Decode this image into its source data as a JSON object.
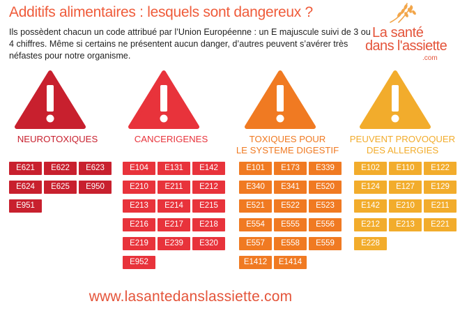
{
  "title": "Additifs alimentaires : lesquels sont dangereux ?",
  "intro": "Ils possèdent chacun un code attribué par l’Union Européenne : un E majuscule suivi de 3 ou 4 chiffres. Même si certains ne présentent aucun danger, d’autres peuvent s’avérer très néfastes pour notre organisme.",
  "logo": {
    "line1": "La santé",
    "line2": "dans l'assiette",
    "sub": ".com",
    "icon": "wheat-icon"
  },
  "categories": [
    {
      "label": "NEUROTOXIQUES",
      "color": "#c8202e",
      "codes": [
        "E621",
        "E622",
        "E623",
        "E624",
        "E625",
        "E950",
        "E951"
      ]
    },
    {
      "label": "CANCERIGENES",
      "color": "#e8333b",
      "codes": [
        "E104",
        "E131",
        "E142",
        "E210",
        "E211",
        "E212",
        "E213",
        "E214",
        "E215",
        "E216",
        "E217",
        "E218",
        "E219",
        "E239",
        "E320",
        "E952"
      ]
    },
    {
      "label": "TOXIQUES POUR\nLE SYSTEME DIGESTIF",
      "color": "#f07a22",
      "codes": [
        "E101",
        "E173",
        "E339",
        "E340",
        "E341",
        "E520",
        "E521",
        "E522",
        "E523",
        "E554",
        "E555",
        "E556",
        "E557",
        "E558",
        "E559",
        "E1412",
        "E1414"
      ]
    },
    {
      "label": "PEUVENT PROVOQUER\nDES ALLERGIES",
      "color": "#f2ac2c",
      "codes": [
        "E102",
        "E110",
        "E122",
        "E124",
        "E127",
        "E129",
        "E142",
        "E210",
        "E211",
        "E212",
        "E213",
        "E221",
        "E228"
      ]
    }
  ],
  "website": "www.lasantedanslassiette.com"
}
